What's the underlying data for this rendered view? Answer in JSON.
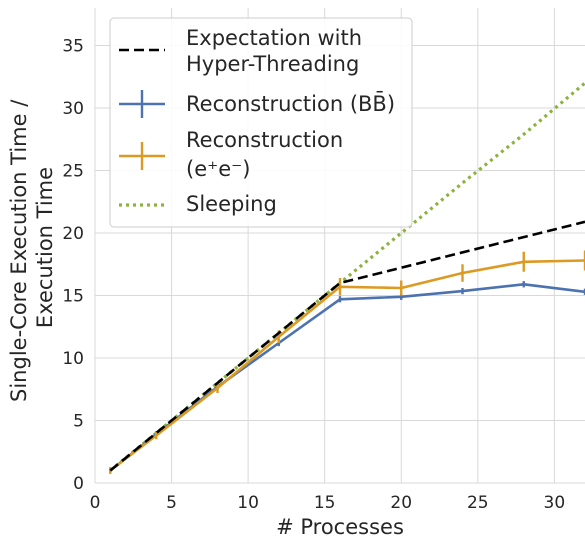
{
  "chart_data": {
    "type": "line",
    "title": "",
    "xlabel": "# Processes",
    "ylabel_lines": [
      "Single-Core Execution Time /",
      "Execution Time"
    ],
    "xlim": [
      0,
      32
    ],
    "ylim": [
      0,
      38
    ],
    "xticks": [
      0,
      5,
      10,
      15,
      20,
      25,
      30
    ],
    "yticks": [
      0,
      5,
      10,
      15,
      20,
      25,
      30,
      35
    ],
    "grid": true,
    "legend_position": "top-left",
    "series": [
      {
        "key": "expectation",
        "legend_lines": [
          "Expectation with",
          "Hyper-Threading"
        ],
        "color": "#000000",
        "style": "dashed",
        "x": [
          1,
          16,
          32
        ],
        "y": [
          1.0,
          16.0,
          20.9
        ]
      },
      {
        "key": "recon_bb",
        "legend_lines": [
          "Reconstruction (BB̄)"
        ],
        "color": "#4c72b0",
        "style": "solid",
        "errorbars": true,
        "x": [
          1,
          4,
          8,
          12,
          16,
          20,
          24,
          28,
          32
        ],
        "y": [
          1.0,
          3.9,
          7.7,
          11.2,
          14.7,
          14.9,
          15.35,
          15.9,
          15.3
        ]
      },
      {
        "key": "recon_ee",
        "legend_lines": [
          "Reconstruction",
          "(e⁺e⁻)"
        ],
        "color": "#dd9a23",
        "style": "solid",
        "errorbars": true,
        "x": [
          1,
          4,
          8,
          12,
          16,
          20,
          24,
          28,
          32
        ],
        "y": [
          1.0,
          3.8,
          7.6,
          11.7,
          15.7,
          15.6,
          16.8,
          17.7,
          17.8
        ],
        "yerr": [
          0.2,
          0.3,
          0.4,
          0.5,
          0.7,
          0.6,
          0.7,
          0.8,
          0.8
        ]
      },
      {
        "key": "sleeping",
        "legend_lines": [
          "Sleeping"
        ],
        "color": "#8db23d",
        "style": "dotted",
        "x": [
          1,
          4,
          8,
          12,
          16,
          20,
          24,
          28,
          32
        ],
        "y": [
          1.0,
          4.0,
          8.0,
          12.0,
          16.0,
          20.0,
          24.0,
          27.9,
          32.0
        ]
      }
    ]
  }
}
